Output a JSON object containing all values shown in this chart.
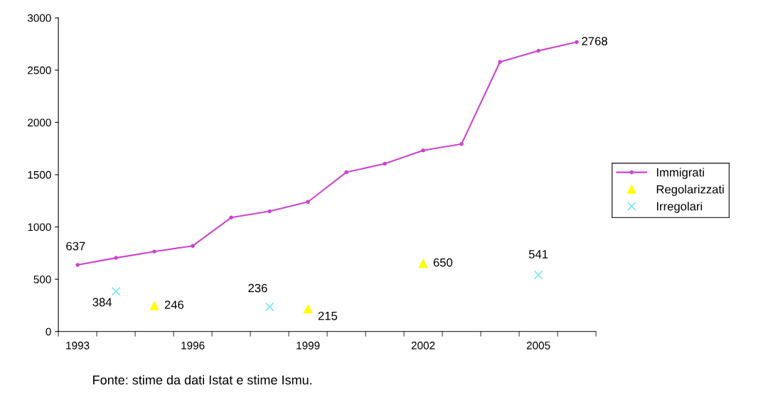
{
  "chart_data": {
    "type": "line",
    "categories": [
      "1993",
      null,
      null,
      "1996",
      null,
      null,
      "1999",
      null,
      null,
      "2002",
      null,
      null,
      "2005",
      null
    ],
    "series": [
      {
        "name": "Immigrati",
        "color": "#cc44cc",
        "marker": "circle",
        "values": [
          637,
          704,
          765,
          819,
          1090,
          1150,
          1240,
          1523,
          1605,
          1733,
          1794,
          2578,
          2685,
          2768
        ],
        "value_labels": [
          "637",
          null,
          null,
          null,
          null,
          null,
          null,
          null,
          null,
          null,
          null,
          null,
          null,
          "2768"
        ]
      },
      {
        "name": "Regolarizzati",
        "type": "scatter",
        "color": "#ffff00",
        "marker": "triangle",
        "values": [
          null,
          null,
          246,
          null,
          null,
          null,
          215,
          null,
          null,
          650,
          null,
          null,
          null,
          null
        ],
        "value_labels": [
          null,
          null,
          "246",
          null,
          null,
          null,
          "215",
          null,
          null,
          "650",
          null,
          null,
          null,
          null
        ]
      },
      {
        "name": "Irregolari",
        "type": "scatter",
        "color": "#66e0ee",
        "marker": "cross",
        "values": [
          null,
          384,
          null,
          null,
          null,
          236,
          null,
          null,
          null,
          null,
          null,
          null,
          541,
          null
        ],
        "value_labels": [
          null,
          "384",
          null,
          null,
          null,
          "236",
          null,
          null,
          null,
          null,
          null,
          null,
          "541",
          null
        ]
      }
    ],
    "ylim": [
      0,
      3000
    ],
    "yticks": [
      0,
      500,
      1000,
      1500,
      2000,
      2500,
      3000
    ],
    "grid": false,
    "legend": "right",
    "annotations": [
      "Fonte: stime da dati Istat e stime Ismu."
    ]
  }
}
